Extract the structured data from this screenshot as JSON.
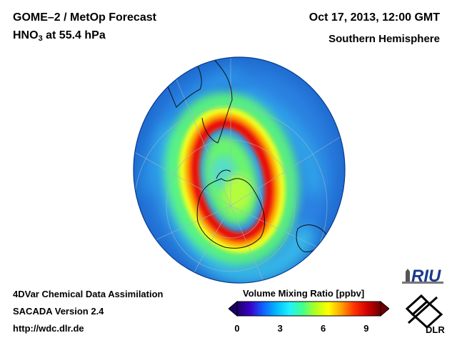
{
  "header": {
    "title_line1": "GOME–2 / MetOp Forecast",
    "title_species": "HNO",
    "title_species_sub": "3",
    "title_level": " at 55.4 hPa",
    "date": "Oct 17, 2013, 12:00 GMT",
    "region": "Southern Hemisphere"
  },
  "footer": {
    "line1": "4DVar Chemical Data Assimilation",
    "line2": "SACADA Version 2.4",
    "line3": "http://wdc.dlr.de"
  },
  "colorbar": {
    "title": "Volume Mixing Ratio [ppbv]",
    "ticks": [
      "0",
      "3",
      "6",
      "9"
    ],
    "tick_values": [
      0,
      3,
      6,
      9
    ],
    "min": 0,
    "max": 10,
    "colors": [
      "#1a0066",
      "#3a00c8",
      "#1060ff",
      "#00b8ff",
      "#20f0ff",
      "#40ff90",
      "#b0ff20",
      "#ffff00",
      "#ffa000",
      "#ff3000",
      "#d00000",
      "#700000"
    ]
  },
  "logos": {
    "riu": "RIU",
    "dlr": "DLR"
  },
  "map": {
    "projection": "orthographic",
    "center": "South Pole",
    "background_color": "#2e88e8"
  }
}
